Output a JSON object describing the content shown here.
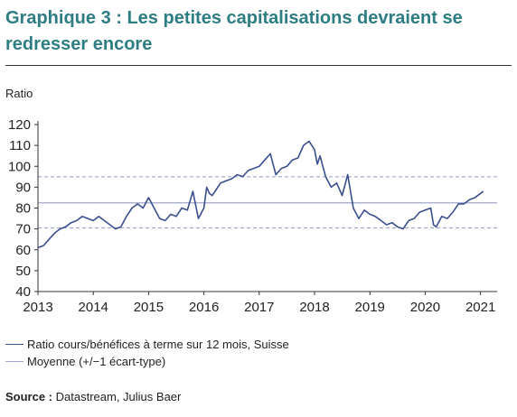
{
  "title": "Graphique 3 : Les petites capitalisations devraient se redresser encore",
  "source_label": "Source :",
  "source_text": "Datastream, Julius Baer",
  "colors": {
    "title": "#2e7d83",
    "series": "#3a4f8f",
    "mean": "#9fa6c8"
  },
  "chart_data": {
    "type": "line",
    "title": "Graphique 3 : Les petites capitalisations devraient se redresser encore",
    "xlabel": "",
    "ylabel": "Ratio",
    "xlim": [
      2013,
      2021.3
    ],
    "ylim": [
      40,
      120
    ],
    "xticks": [
      2013,
      2014,
      2015,
      2016,
      2017,
      2018,
      2019,
      2020,
      2021
    ],
    "yticks": [
      40,
      50,
      60,
      70,
      80,
      90,
      100,
      110,
      120
    ],
    "grid": false,
    "legend_position": "bottom",
    "series": [
      {
        "name": "Ratio cours/bénéfices à terme sur 12 mois, Suisse",
        "x": [
          2013.0,
          2013.1,
          2013.2,
          2013.3,
          2013.4,
          2013.5,
          2013.6,
          2013.7,
          2013.8,
          2013.9,
          2014.0,
          2014.1,
          2014.2,
          2014.3,
          2014.4,
          2014.5,
          2014.6,
          2014.7,
          2014.8,
          2014.9,
          2015.0,
          2015.1,
          2015.2,
          2015.3,
          2015.4,
          2015.5,
          2015.6,
          2015.7,
          2015.8,
          2015.9,
          2016.0,
          2016.05,
          2016.1,
          2016.15,
          2016.2,
          2016.3,
          2016.4,
          2016.5,
          2016.6,
          2016.7,
          2016.8,
          2016.9,
          2017.0,
          2017.1,
          2017.2,
          2017.3,
          2017.4,
          2017.5,
          2017.6,
          2017.7,
          2017.8,
          2017.9,
          2018.0,
          2018.05,
          2018.1,
          2018.2,
          2018.3,
          2018.4,
          2018.5,
          2018.6,
          2018.7,
          2018.8,
          2018.9,
          2019.0,
          2019.1,
          2019.2,
          2019.3,
          2019.4,
          2019.5,
          2019.6,
          2019.7,
          2019.8,
          2019.9,
          2020.0,
          2020.1,
          2020.15,
          2020.2,
          2020.3,
          2020.4,
          2020.5,
          2020.6,
          2020.7,
          2020.8,
          2020.9,
          2021.0,
          2021.05
        ],
        "y": [
          61,
          62,
          65,
          68,
          70,
          71,
          73,
          74,
          76,
          75,
          74,
          76,
          74,
          72,
          70,
          71,
          76,
          80,
          82,
          80,
          85,
          80,
          75,
          74,
          77,
          76,
          80,
          79,
          88,
          75,
          80,
          90,
          87,
          86,
          88,
          92,
          93,
          94,
          96,
          95,
          98,
          99,
          100,
          103,
          106,
          96,
          99,
          100,
          103,
          104,
          110,
          112,
          108,
          101,
          105,
          95,
          90,
          92,
          86,
          96,
          80,
          75,
          79,
          77,
          76,
          74,
          72,
          73,
          71,
          70,
          74,
          75,
          78,
          79,
          80,
          72,
          71,
          76,
          75,
          78,
          82,
          82,
          84,
          85,
          87,
          88
        ]
      },
      {
        "name": "Moyenne (+/−1 écart-type)",
        "mean": 82.5,
        "upper": 95,
        "lower": 70.5
      }
    ]
  }
}
